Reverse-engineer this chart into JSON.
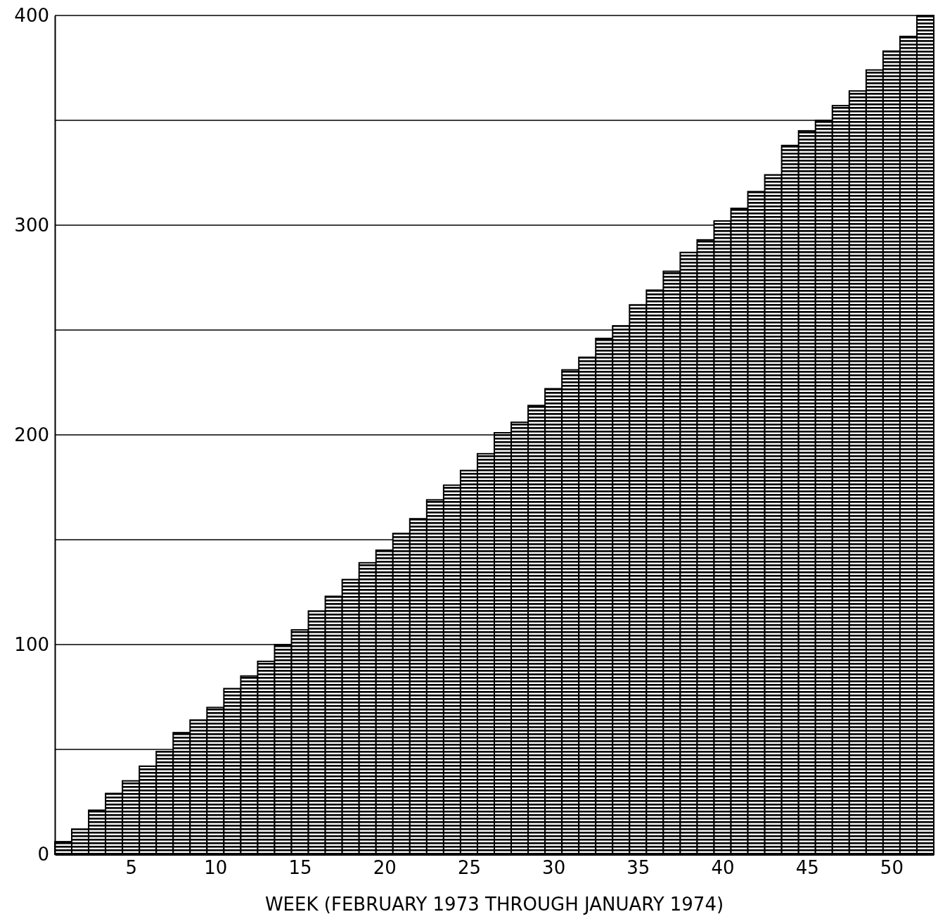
{
  "chart_data": {
    "type": "bar",
    "xlabel": "WEEK (FEBRUARY 1973 THROUGH JANUARY 1974)",
    "x": [
      1,
      2,
      3,
      4,
      5,
      6,
      7,
      8,
      9,
      10,
      11,
      12,
      13,
      14,
      15,
      16,
      17,
      18,
      19,
      20,
      21,
      22,
      23,
      24,
      25,
      26,
      27,
      28,
      29,
      30,
      31,
      32,
      33,
      34,
      35,
      36,
      37,
      38,
      39,
      40,
      41,
      42,
      43,
      44,
      45,
      46,
      47,
      48,
      49,
      50,
      51,
      52
    ],
    "values": [
      6,
      12,
      21,
      29,
      35,
      42,
      49,
      58,
      64,
      70,
      79,
      85,
      92,
      100,
      107,
      116,
      123,
      131,
      139,
      145,
      153,
      160,
      169,
      176,
      183,
      191,
      201,
      206,
      214,
      222,
      231,
      237,
      246,
      252,
      262,
      269,
      278,
      287,
      293,
      302,
      308,
      316,
      324,
      338,
      345,
      350,
      357,
      364,
      374,
      383,
      390,
      400
    ],
    "color": "#000000",
    "xlim": [
      0.5,
      52.5
    ],
    "xticks": [
      5,
      10,
      15,
      20,
      25,
      30,
      35,
      40,
      45,
      50
    ],
    "ylim": [
      0,
      400
    ],
    "yticks": [
      0,
      {
        "value": 50,
        "label": null
      },
      100,
      {
        "value": 150,
        "label": null
      },
      200,
      {
        "value": 250,
        "label": null
      },
      300,
      {
        "value": 350,
        "label": null
      },
      400
    ],
    "grid": "y"
  }
}
